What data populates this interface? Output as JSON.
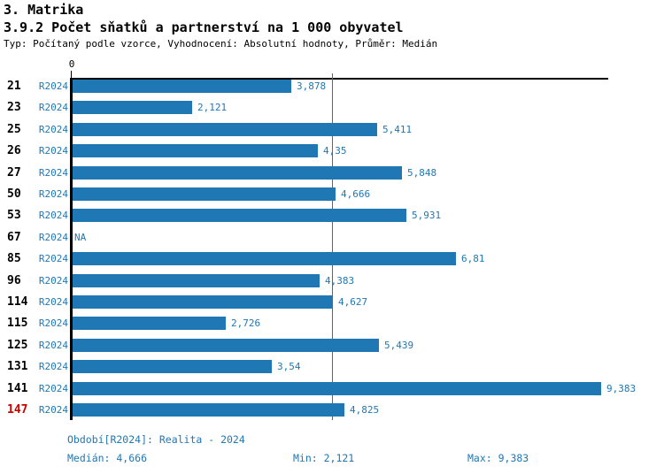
{
  "header": {
    "title": "3. Matrika",
    "subtitle": "3.9.2 Počet sňatků a partnerství na 1 000 obyvatel",
    "meta": "Typ: Počítaný podle vzorce, Vyhodnocení: Absolutní hodnoty, Průměr: Medián"
  },
  "chart_data": {
    "type": "bar",
    "orientation": "horizontal",
    "title": "3.9.2 Počet sňatků a partnerství na 1 000 obyvatel",
    "x_axis": {
      "zero_label": "0",
      "xlim": [
        0,
        9.53
      ],
      "gridlines": false
    },
    "median_line_value": 4.666,
    "period_label": "R2024",
    "categories": [
      "21",
      "23",
      "25",
      "26",
      "27",
      "50",
      "53",
      "67",
      "85",
      "96",
      "114",
      "115",
      "125",
      "131",
      "141",
      "147"
    ],
    "rows": [
      {
        "category": "21",
        "period": "R2024",
        "value": 3.878,
        "value_label": "3,878",
        "highlighted": false
      },
      {
        "category": "23",
        "period": "R2024",
        "value": 2.121,
        "value_label": "2,121",
        "highlighted": false
      },
      {
        "category": "25",
        "period": "R2024",
        "value": 5.411,
        "value_label": "5,411",
        "highlighted": false
      },
      {
        "category": "26",
        "period": "R2024",
        "value": 4.35,
        "value_label": "4,35",
        "highlighted": false
      },
      {
        "category": "27",
        "period": "R2024",
        "value": 5.848,
        "value_label": "5,848",
        "highlighted": false
      },
      {
        "category": "50",
        "period": "R2024",
        "value": 4.666,
        "value_label": "4,666",
        "highlighted": false
      },
      {
        "category": "53",
        "period": "R2024",
        "value": 5.931,
        "value_label": "5,931",
        "highlighted": false
      },
      {
        "category": "67",
        "period": "R2024",
        "value": null,
        "value_label": "NA",
        "highlighted": false
      },
      {
        "category": "85",
        "period": "R2024",
        "value": 6.81,
        "value_label": "6,81",
        "highlighted": false
      },
      {
        "category": "96",
        "period": "R2024",
        "value": 4.383,
        "value_label": "4,383",
        "highlighted": false
      },
      {
        "category": "114",
        "period": "R2024",
        "value": 4.627,
        "value_label": "4,627",
        "highlighted": false
      },
      {
        "category": "115",
        "period": "R2024",
        "value": 2.726,
        "value_label": "2,726",
        "highlighted": false
      },
      {
        "category": "125",
        "period": "R2024",
        "value": 5.439,
        "value_label": "5,439",
        "highlighted": false
      },
      {
        "category": "131",
        "period": "R2024",
        "value": 3.54,
        "value_label": "3,54",
        "highlighted": false
      },
      {
        "category": "141",
        "period": "R2024",
        "value": 9.383,
        "value_label": "9,383",
        "highlighted": false
      },
      {
        "category": "147",
        "period": "R2024",
        "value": 4.825,
        "value_label": "4,825",
        "highlighted": true
      }
    ],
    "colors": {
      "bar": "#1f77b4",
      "accent_text": "#1f77b4",
      "median_line": "#1f77b4",
      "highlight_text": "#cc0000",
      "axis": "#000000"
    }
  },
  "footer": {
    "period": "Období[R2024]: Realita - 2024",
    "median": "Medián: 4,666",
    "min": "Min: 2,121",
    "max": "Max: 9,383"
  }
}
